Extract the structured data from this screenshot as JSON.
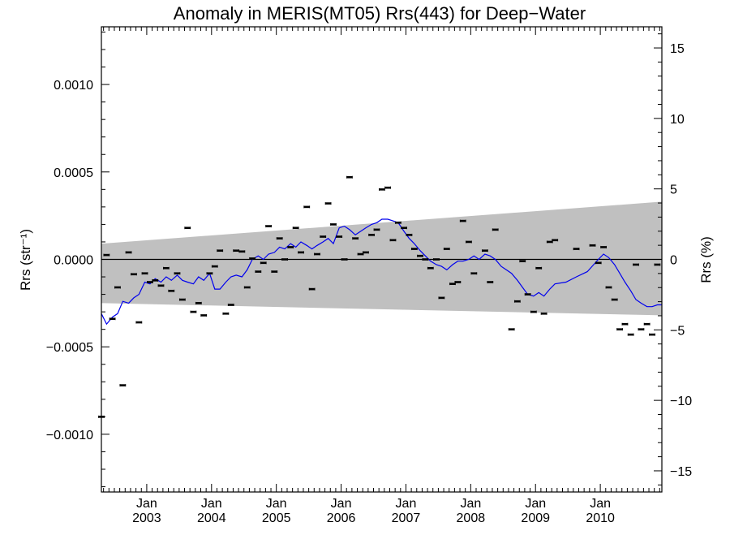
{
  "chart_data": {
    "type": "scatter",
    "title": "Anomaly in MERIS(MT05) Rrs(443) for Deep−Water",
    "ylabel_left": "Rrs (str⁻¹)",
    "ylabel_right": "Rrs (%)",
    "xlim": [
      2002.3,
      2010.95
    ],
    "ylim": [
      -0.00133,
      0.00133
    ],
    "y2lim": [
      -16.5,
      16.5
    ],
    "x_ticks": [
      {
        "month": "Jan",
        "year": "2003",
        "x": 2003.0
      },
      {
        "month": "Jan",
        "year": "2004",
        "x": 2004.0
      },
      {
        "month": "Jan",
        "year": "2005",
        "x": 2005.0
      },
      {
        "month": "Jan",
        "year": "2006",
        "x": 2006.0
      },
      {
        "month": "Jan",
        "year": "2007",
        "x": 2007.0
      },
      {
        "month": "Jan",
        "year": "2008",
        "x": 2008.0
      },
      {
        "month": "Jan",
        "year": "2009",
        "x": 2009.0
      },
      {
        "month": "Jan",
        "year": "2010",
        "x": 2010.0
      }
    ],
    "y_ticks_left": [
      {
        "label": "0.0010",
        "value": 0.001
      },
      {
        "label": "0.0005",
        "value": 0.0005
      },
      {
        "label": "0.0000",
        "value": 0.0
      },
      {
        "label": "−0.0005",
        "value": -0.0005
      },
      {
        "label": "−0.0010",
        "value": -0.001
      }
    ],
    "y_ticks_right": [
      {
        "label": "15",
        "value": 15
      },
      {
        "label": "10",
        "value": 10
      },
      {
        "label": "5",
        "value": 5
      },
      {
        "label": "0",
        "value": 0
      },
      {
        "label": "−5",
        "value": -5
      },
      {
        "label": "−10",
        "value": -10
      },
      {
        "label": "−15",
        "value": -15
      }
    ],
    "uncertainty_band": {
      "x": [
        2002.3,
        2010.95
      ],
      "upper": [
        9e-05,
        0.00033
      ],
      "lower": [
        -0.00025,
        -0.00032
      ],
      "color": "#c0c0c0"
    },
    "zero_line": 0,
    "series": [
      {
        "style": "points",
        "color": "#000000",
        "x": [
          2002.3,
          2002.38,
          2002.47,
          2002.55,
          2002.63,
          2002.72,
          2002.8,
          2002.88,
          2002.97,
          2003.05,
          2003.13,
          2003.22,
          2003.3,
          2003.38,
          2003.47,
          2003.55,
          2003.63,
          2003.72,
          2003.8,
          2003.88,
          2003.97,
          2004.05,
          2004.13,
          2004.22,
          2004.3,
          2004.38,
          2004.47,
          2004.55,
          2004.63,
          2004.72,
          2004.8,
          2004.88,
          2004.97,
          2005.05,
          2005.13,
          2005.22,
          2005.3,
          2005.38,
          2005.47,
          2005.55,
          2005.63,
          2005.72,
          2005.8,
          2005.88,
          2005.97,
          2006.05,
          2006.13,
          2006.22,
          2006.3,
          2006.38,
          2006.47,
          2006.55,
          2006.63,
          2006.72,
          2006.8,
          2006.88,
          2006.97,
          2007.05,
          2007.13,
          2007.22,
          2007.3,
          2007.38,
          2007.47,
          2007.55,
          2007.63,
          2007.72,
          2007.8,
          2007.88,
          2007.97,
          2008.05,
          2008.22,
          2008.3,
          2008.38,
          2008.63,
          2008.72,
          2008.8,
          2008.88,
          2008.97,
          2009.05,
          2009.13,
          2009.22,
          2009.3,
          2009.63,
          2009.88,
          2009.97,
          2010.05,
          2010.13,
          2010.22,
          2010.3,
          2010.38,
          2010.47,
          2010.55,
          2010.63,
          2010.72,
          2010.8,
          2010.88
        ],
        "y": [
          -0.0009,
          2.5e-05,
          -0.00034,
          -0.00016,
          -0.00072,
          4e-05,
          -8.5e-05,
          -0.00036,
          -8e-05,
          -0.00013,
          -0.00012,
          -0.00015,
          -5e-05,
          -0.00018,
          -8e-05,
          -0.00023,
          0.00018,
          -0.0003,
          -0.00025,
          -0.00032,
          -8e-05,
          -4e-05,
          5e-05,
          -0.00031,
          -0.00026,
          5e-05,
          4.5e-05,
          -0.00016,
          5e-06,
          -7e-05,
          -2e-05,
          0.00019,
          -7e-05,
          0.00012,
          0.0,
          7e-05,
          0.00018,
          4e-05,
          0.0003,
          -0.00017,
          3e-05,
          0.00013,
          0.00032,
          0.0002,
          0.00013,
          0.0,
          0.00047,
          0.00012,
          3e-05,
          4e-05,
          0.00014,
          0.00017,
          0.0004,
          0.00041,
          0.00011,
          0.00021,
          0.00018,
          0.00014,
          6e-05,
          2e-05,
          0.0,
          -5e-05,
          0.0,
          -0.00022,
          6e-05,
          -0.00014,
          -0.00013,
          0.00022,
          0.0001,
          -8e-05,
          5e-05,
          -0.00013,
          0.00017,
          -0.0004,
          -0.00024,
          -1e-05,
          -0.0002,
          -0.0003,
          -5e-05,
          -0.00031,
          0.0001,
          0.00011,
          6e-05,
          8e-05,
          -2e-05,
          7e-05,
          -0.00016,
          -0.00023,
          -0.0004,
          -0.00037,
          -0.00043,
          -3e-05,
          -0.0004,
          -0.00037,
          -0.00043,
          -3e-05
        ]
      },
      {
        "style": "line",
        "color": "#0000ee",
        "x": [
          2002.3,
          2002.38,
          2002.47,
          2002.55,
          2002.63,
          2002.72,
          2002.8,
          2002.88,
          2002.97,
          2003.05,
          2003.13,
          2003.22,
          2003.3,
          2003.38,
          2003.47,
          2003.55,
          2003.63,
          2003.72,
          2003.8,
          2003.88,
          2003.97,
          2004.05,
          2004.13,
          2004.22,
          2004.3,
          2004.38,
          2004.47,
          2004.55,
          2004.63,
          2004.72,
          2004.8,
          2004.88,
          2004.97,
          2005.05,
          2005.13,
          2005.22,
          2005.3,
          2005.38,
          2005.47,
          2005.55,
          2005.63,
          2005.72,
          2005.8,
          2005.88,
          2005.97,
          2006.05,
          2006.13,
          2006.22,
          2006.3,
          2006.38,
          2006.47,
          2006.55,
          2006.63,
          2006.72,
          2006.8,
          2006.88,
          2006.97,
          2007.05,
          2007.13,
          2007.22,
          2007.3,
          2007.38,
          2007.47,
          2007.55,
          2007.63,
          2007.72,
          2007.8,
          2007.88,
          2007.97,
          2008.05,
          2008.13,
          2008.22,
          2008.3,
          2008.38,
          2008.47,
          2008.55,
          2008.63,
          2008.72,
          2008.8,
          2008.88,
          2008.97,
          2009.05,
          2009.13,
          2009.22,
          2009.3,
          2009.47,
          2009.63,
          2009.8,
          2009.97,
          2010.05,
          2010.13,
          2010.22,
          2010.3,
          2010.38,
          2010.47,
          2010.55,
          2010.63,
          2010.72,
          2010.8,
          2010.88,
          2010.95
        ],
        "y": [
          -0.00031,
          -0.00037,
          -0.00033,
          -0.00031,
          -0.00024,
          -0.00025,
          -0.00022,
          -0.0002,
          -0.00013,
          -0.00014,
          -0.00011,
          -0.00013,
          -0.0001,
          -0.00012,
          -9e-05,
          -0.00012,
          -0.00013,
          -0.00014,
          -0.0001,
          -0.00012,
          -8e-05,
          -0.00017,
          -0.00017,
          -0.00013,
          -0.0001,
          -9e-05,
          -0.0001,
          -6e-05,
          0.0,
          2e-05,
          0.0,
          3e-05,
          4e-05,
          7e-05,
          6e-05,
          9e-05,
          7e-05,
          0.0001,
          8e-05,
          6e-05,
          8e-05,
          0.0001,
          0.00012,
          9e-05,
          0.00018,
          0.00019,
          0.00017,
          0.00014,
          0.00016,
          0.00018,
          0.0002,
          0.00021,
          0.00023,
          0.00023,
          0.00022,
          0.00021,
          0.00016,
          0.00012,
          9e-05,
          5e-05,
          2e-05,
          -1e-05,
          -3e-05,
          -4e-05,
          -6e-05,
          -3e-05,
          -1e-05,
          -1e-05,
          0.0,
          2e-05,
          0.0,
          3e-05,
          2e-05,
          0.0,
          -4e-05,
          -6e-05,
          -8e-05,
          -0.00012,
          -0.00016,
          -0.0002,
          -0.00021,
          -0.00019,
          -0.00021,
          -0.00017,
          -0.00014,
          -0.00013,
          -0.0001,
          -7e-05,
          0.0,
          3e-05,
          1e-05,
          -3e-05,
          -8e-05,
          -0.00013,
          -0.00018,
          -0.00023,
          -0.00025,
          -0.00027,
          -0.00027,
          -0.00026,
          -0.00026
        ]
      }
    ]
  }
}
